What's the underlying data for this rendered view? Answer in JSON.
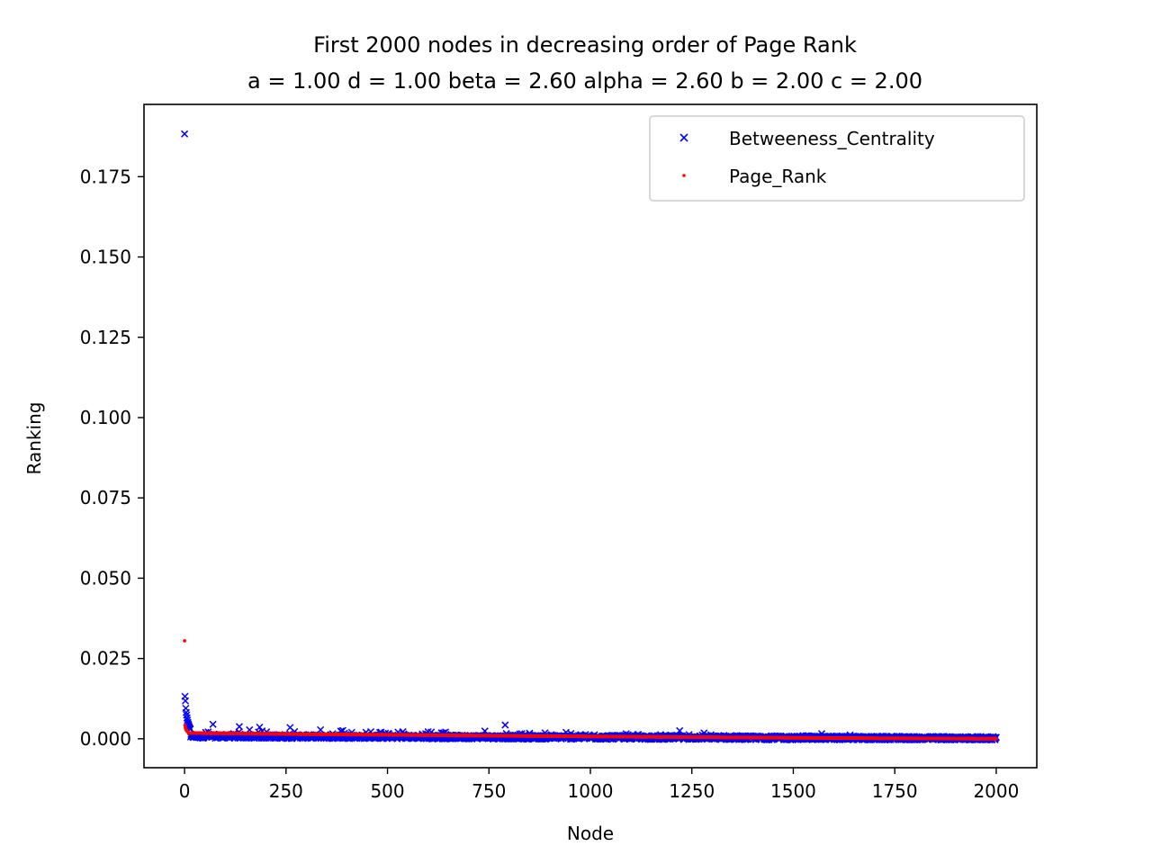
{
  "chart_data": {
    "type": "scatter",
    "title": "First 2000 nodes in decreasing order of Page Rank",
    "subtitle": "a = 1.00 d = 1.00 beta = 2.60 alpha = 2.60 b = 2.00 c = 2.00",
    "xlabel": "Node",
    "ylabel": "Ranking",
    "xlim": [
      -100,
      2100
    ],
    "ylim": [
      -0.009,
      0.1975
    ],
    "x_ticks": [
      0,
      250,
      500,
      750,
      1000,
      1250,
      1500,
      1750,
      2000
    ],
    "x_tick_labels": [
      "0",
      "250",
      "500",
      "750",
      "1000",
      "1250",
      "1500",
      "1750",
      "2000"
    ],
    "y_ticks": [
      0.0,
      0.025,
      0.05,
      0.075,
      0.1,
      0.125,
      0.15,
      0.175
    ],
    "y_tick_labels": [
      "0.000",
      "0.025",
      "0.050",
      "0.075",
      "0.100",
      "0.125",
      "0.150",
      "0.175"
    ],
    "grid": false,
    "legend": "top-right",
    "x_range": [
      0,
      2000
    ],
    "series": [
      {
        "name": "Betweeness_Centrality",
        "marker": "x",
        "color": "#0000ff",
        "values_head": [
          0.1883,
          0.0132,
          0.0118,
          0.0095,
          0.0082,
          0.0074,
          0.0065,
          0.0058,
          0.0051,
          0.0046,
          0.0042,
          0.0038,
          0.0035,
          0.0032,
          0.003
        ],
        "notable": [
          [
            70,
            0.0045
          ],
          [
            135,
            0.0038
          ],
          [
            185,
            0.0036
          ],
          [
            260,
            0.0035
          ],
          [
            335,
            0.0028
          ],
          [
            390,
            0.0026
          ],
          [
            600,
            0.0022
          ],
          [
            740,
            0.0024
          ],
          [
            790,
            0.0043
          ],
          [
            940,
            0.002
          ],
          [
            1220,
            0.0025
          ],
          [
            1280,
            0.0018
          ],
          [
            1570,
            0.0016
          ],
          [
            1640,
            0.0012
          ]
        ],
        "tail_start": 0.0008,
        "tail_end": 0.0001
      },
      {
        "name": "Page_Rank",
        "marker": "dot",
        "color": "#ff0000",
        "values_head": [
          0.0305,
          0.0042,
          0.0035,
          0.0031,
          0.0028,
          0.0026,
          0.0024,
          0.0023,
          0.0022,
          0.0021
        ],
        "tail_start": 0.0018,
        "tail_end": 0.0001
      }
    ]
  }
}
